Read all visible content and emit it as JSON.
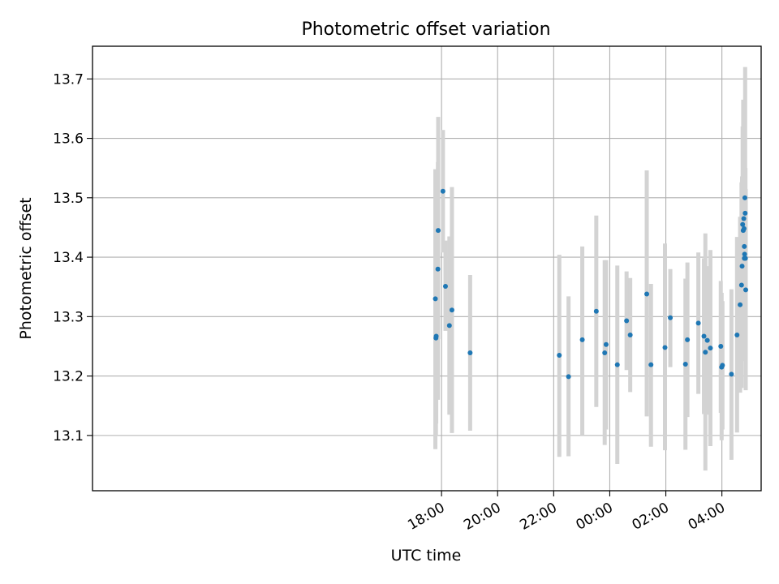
{
  "chart_data": {
    "type": "scatter",
    "title": "Photometric offset variation",
    "xlabel": "UTC time",
    "ylabel": "Photometric offset",
    "x_axis": "time (h, relative to 00:00 UTC)",
    "xlim": [
      -18.45,
      5.4
    ],
    "ylim": [
      13.007,
      13.755
    ],
    "x_ticks": [
      {
        "value": -6,
        "label": "18:00"
      },
      {
        "value": -4,
        "label": "20:00"
      },
      {
        "value": -2,
        "label": "22:00"
      },
      {
        "value": 0,
        "label": "00:00"
      },
      {
        "value": 2,
        "label": "02:00"
      },
      {
        "value": 4,
        "label": "04:00"
      }
    ],
    "y_ticks": [
      {
        "value": 13.1,
        "label": "13.1"
      },
      {
        "value": 13.2,
        "label": "13.2"
      },
      {
        "value": 13.3,
        "label": "13.3"
      },
      {
        "value": 13.4,
        "label": "13.4"
      },
      {
        "value": 13.5,
        "label": "13.5"
      },
      {
        "value": 13.6,
        "label": "13.6"
      },
      {
        "value": 13.7,
        "label": "13.7"
      }
    ],
    "grid": true,
    "point_color": "#1f77b4",
    "errorbar_color": "#d3d3d3",
    "points": [
      {
        "x": -6.22,
        "y": 13.33,
        "lo": 13.077,
        "hi": 13.548
      },
      {
        "x": -6.2,
        "y": 13.264,
        "lo": 13.1,
        "hi": 13.43
      },
      {
        "x": -6.19,
        "y": 13.267,
        "lo": 13.12,
        "hi": 13.41
      },
      {
        "x": -6.12,
        "y": 13.445,
        "lo": 13.262,
        "hi": 13.636
      },
      {
        "x": -6.13,
        "y": 13.38,
        "lo": 13.16,
        "hi": 13.56
      },
      {
        "x": -5.95,
        "y": 13.511,
        "lo": 13.408,
        "hi": 13.614
      },
      {
        "x": -5.86,
        "y": 13.351,
        "lo": 13.276,
        "hi": 13.428
      },
      {
        "x": -5.72,
        "y": 13.285,
        "lo": 13.135,
        "hi": 13.435
      },
      {
        "x": -5.63,
        "y": 13.311,
        "lo": 13.104,
        "hi": 13.518
      },
      {
        "x": -4.98,
        "y": 13.239,
        "lo": 13.108,
        "hi": 13.37
      },
      {
        "x": -1.8,
        "y": 13.235,
        "lo": 13.064,
        "hi": 13.404
      },
      {
        "x": -1.47,
        "y": 13.199,
        "lo": 13.065,
        "hi": 13.334
      },
      {
        "x": -0.98,
        "y": 13.261,
        "lo": 13.1,
        "hi": 13.418
      },
      {
        "x": -0.48,
        "y": 13.309,
        "lo": 13.148,
        "hi": 13.47
      },
      {
        "x": -0.18,
        "y": 13.239,
        "lo": 13.084,
        "hi": 13.395
      },
      {
        "x": -0.13,
        "y": 13.253,
        "lo": 13.11,
        "hi": 13.395
      },
      {
        "x": 0.27,
        "y": 13.219,
        "lo": 13.052,
        "hi": 13.386
      },
      {
        "x": 0.6,
        "y": 13.293,
        "lo": 13.21,
        "hi": 13.376
      },
      {
        "x": 0.73,
        "y": 13.269,
        "lo": 13.173,
        "hi": 13.365
      },
      {
        "x": 1.32,
        "y": 13.338,
        "lo": 13.132,
        "hi": 13.546
      },
      {
        "x": 1.47,
        "y": 13.219,
        "lo": 13.081,
        "hi": 13.355
      },
      {
        "x": 1.97,
        "y": 13.248,
        "lo": 13.075,
        "hi": 13.423
      },
      {
        "x": 2.16,
        "y": 13.298,
        "lo": 13.215,
        "hi": 13.38
      },
      {
        "x": 2.7,
        "y": 13.22,
        "lo": 13.076,
        "hi": 13.364
      },
      {
        "x": 2.77,
        "y": 13.261,
        "lo": 13.131,
        "hi": 13.391
      },
      {
        "x": 3.16,
        "y": 13.289,
        "lo": 13.17,
        "hi": 13.408
      },
      {
        "x": 3.36,
        "y": 13.267,
        "lo": 13.136,
        "hi": 13.398
      },
      {
        "x": 3.41,
        "y": 13.24,
        "lo": 13.041,
        "hi": 13.44
      },
      {
        "x": 3.48,
        "y": 13.26,
        "lo": 13.135,
        "hi": 13.385
      },
      {
        "x": 3.59,
        "y": 13.247,
        "lo": 13.082,
        "hi": 13.412
      },
      {
        "x": 3.96,
        "y": 13.25,
        "lo": 13.138,
        "hi": 13.36
      },
      {
        "x": 3.99,
        "y": 13.215,
        "lo": 13.092,
        "hi": 13.34
      },
      {
        "x": 4.02,
        "y": 13.218,
        "lo": 13.11,
        "hi": 13.326
      },
      {
        "x": 4.34,
        "y": 13.203,
        "lo": 13.059,
        "hi": 13.346
      },
      {
        "x": 4.54,
        "y": 13.269,
        "lo": 13.105,
        "hi": 13.434
      },
      {
        "x": 4.65,
        "y": 13.32,
        "lo": 13.172,
        "hi": 13.468
      },
      {
        "x": 4.7,
        "y": 13.353,
        "lo": 13.18,
        "hi": 13.526
      },
      {
        "x": 4.72,
        "y": 13.385,
        "lo": 13.24,
        "hi": 13.536
      },
      {
        "x": 4.74,
        "y": 13.455,
        "lo": 13.28,
        "hi": 13.62
      },
      {
        "x": 4.76,
        "y": 13.445,
        "lo": 13.225,
        "hi": 13.665
      },
      {
        "x": 4.78,
        "y": 13.465,
        "lo": 13.305,
        "hi": 13.625
      },
      {
        "x": 4.79,
        "y": 13.448,
        "lo": 13.3,
        "hi": 13.59
      },
      {
        "x": 4.8,
        "y": 13.398,
        "lo": 13.27,
        "hi": 13.53
      },
      {
        "x": 4.8,
        "y": 13.418,
        "lo": 13.29,
        "hi": 13.55
      },
      {
        "x": 4.81,
        "y": 13.405,
        "lo": 13.26,
        "hi": 13.55
      },
      {
        "x": 4.82,
        "y": 13.5,
        "lo": 13.25,
        "hi": 13.63
      },
      {
        "x": 4.83,
        "y": 13.474,
        "lo": 13.24,
        "hi": 13.72
      },
      {
        "x": 4.84,
        "y": 13.398,
        "lo": 13.25,
        "hi": 13.55
      },
      {
        "x": 4.85,
        "y": 13.345,
        "lo": 13.176,
        "hi": 13.515
      }
    ]
  }
}
